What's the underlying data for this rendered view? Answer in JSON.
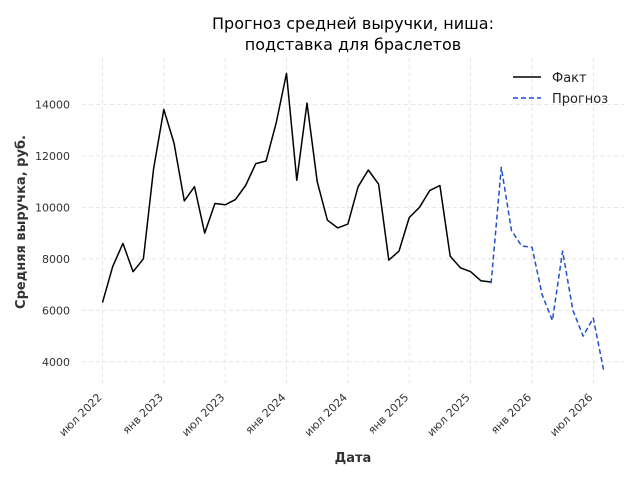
{
  "chart_data": {
    "type": "line",
    "title_lines": [
      "Прогноз средней выручки, ниша:",
      "подставка для браслетов"
    ],
    "xlabel": "Дата",
    "ylabel": "Средняя выручка, руб.",
    "x_tick_labels": [
      "июл 2022",
      "янв 2023",
      "июл 2023",
      "янв 2024",
      "июл 2024",
      "янв 2025",
      "июл 2025",
      "янв 2026",
      "июл 2026"
    ],
    "x_tick_dates": [
      "2022-07",
      "2023-01",
      "2023-07",
      "2024-01",
      "2024-07",
      "2025-01",
      "2025-07",
      "2026-01",
      "2026-07"
    ],
    "y_ticks": [
      4000,
      6000,
      8000,
      10000,
      12000,
      14000
    ],
    "xlim": [
      "2022-05",
      "2026-10"
    ],
    "ylim": [
      3100,
      15800
    ],
    "grid": true,
    "legend_position": "top-right",
    "series": [
      {
        "name": "Факт",
        "color": "#000000",
        "style": "solid",
        "points": [
          [
            "2022-07",
            6300
          ],
          [
            "2022-08",
            7700
          ],
          [
            "2022-09",
            8600
          ],
          [
            "2022-10",
            7500
          ],
          [
            "2022-11",
            8000
          ],
          [
            "2022-12",
            11500
          ],
          [
            "2023-01",
            13800
          ],
          [
            "2023-02",
            12500
          ],
          [
            "2023-03",
            10250
          ],
          [
            "2023-04",
            10800
          ],
          [
            "2023-05",
            9000
          ],
          [
            "2023-06",
            10150
          ],
          [
            "2023-07",
            10100
          ],
          [
            "2023-08",
            10300
          ],
          [
            "2023-09",
            10850
          ],
          [
            "2023-10",
            11700
          ],
          [
            "2023-11",
            11800
          ],
          [
            "2023-12",
            13300
          ],
          [
            "2024-01",
            15200
          ],
          [
            "2024-02",
            11050
          ],
          [
            "2024-03",
            14050
          ],
          [
            "2024-04",
            11000
          ],
          [
            "2024-05",
            9500
          ],
          [
            "2024-06",
            9200
          ],
          [
            "2024-07",
            9350
          ],
          [
            "2024-08",
            10800
          ],
          [
            "2024-09",
            11450
          ],
          [
            "2024-10",
            10900
          ],
          [
            "2024-11",
            7950
          ],
          [
            "2024-12",
            8300
          ],
          [
            "2025-01",
            9600
          ],
          [
            "2025-02",
            10000
          ],
          [
            "2025-03",
            10650
          ],
          [
            "2025-04",
            10850
          ],
          [
            "2025-05",
            8100
          ],
          [
            "2025-06",
            7650
          ],
          [
            "2025-07",
            7500
          ],
          [
            "2025-08",
            7150
          ],
          [
            "2025-09",
            7100
          ]
        ]
      },
      {
        "name": "Прогноз",
        "color": "#1f4fd0",
        "style": "dashed",
        "points": [
          [
            "2025-09",
            7050
          ],
          [
            "2025-10",
            11550
          ],
          [
            "2025-11",
            9100
          ],
          [
            "2025-12",
            8500
          ],
          [
            "2026-01",
            8450
          ],
          [
            "2026-02",
            6600
          ],
          [
            "2026-03",
            5600
          ],
          [
            "2026-04",
            8300
          ],
          [
            "2026-05",
            6000
          ],
          [
            "2026-06",
            5000
          ],
          [
            "2026-07",
            5700
          ],
          [
            "2026-08",
            3700
          ]
        ]
      }
    ]
  }
}
